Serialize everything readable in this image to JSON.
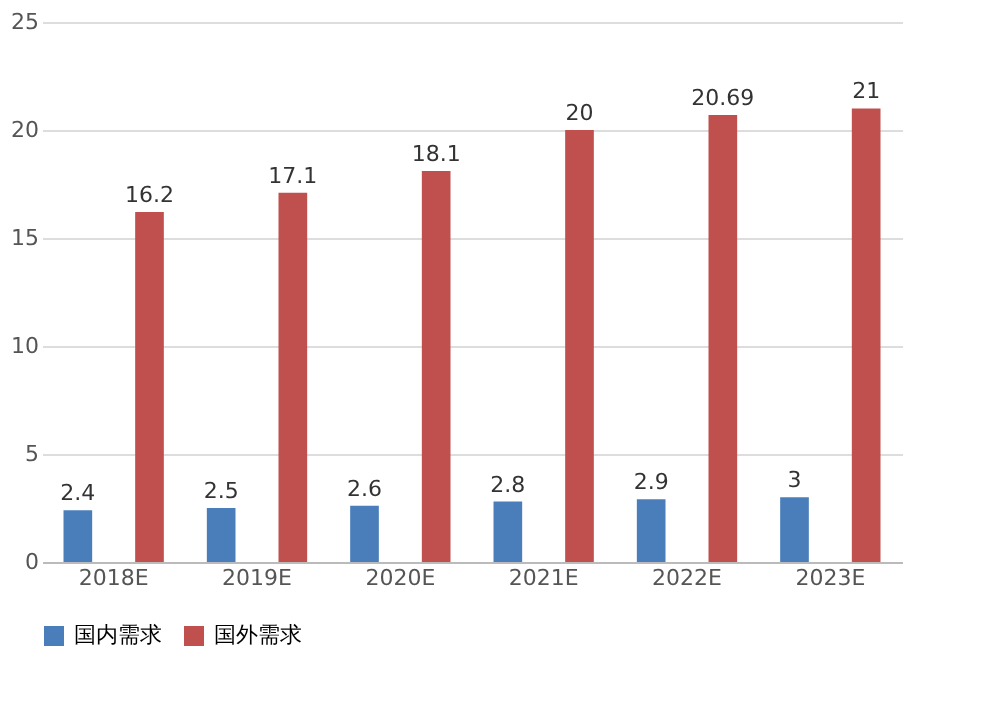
{
  "chart_data": {
    "type": "bar",
    "categories": [
      "2018E",
      "2019E",
      "2020E",
      "2021E",
      "2022E",
      "2023E"
    ],
    "series": [
      {
        "name": "国内需求",
        "color": "#4a7ebb",
        "values": [
          2.4,
          2.5,
          2.6,
          2.8,
          2.9,
          3
        ]
      },
      {
        "name": "国外需求",
        "color": "#c0504d",
        "values": [
          16.2,
          17.1,
          18.1,
          20,
          20.69,
          21
        ]
      }
    ],
    "ylim": [
      0,
      25
    ],
    "yticks": [
      0,
      5,
      10,
      15,
      20,
      25
    ],
    "grid": "y",
    "legend": "bottom",
    "data_labels": true
  }
}
